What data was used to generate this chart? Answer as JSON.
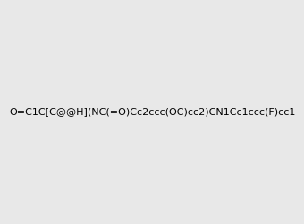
{
  "smiles": "O=C1C[C@@H](NC(=O)Cc2ccc(OC)cc2)CN1Cc1ccc(F)cc1",
  "image_size": 300,
  "background_color": "#e8e8e8",
  "title": "",
  "dpi": 100
}
